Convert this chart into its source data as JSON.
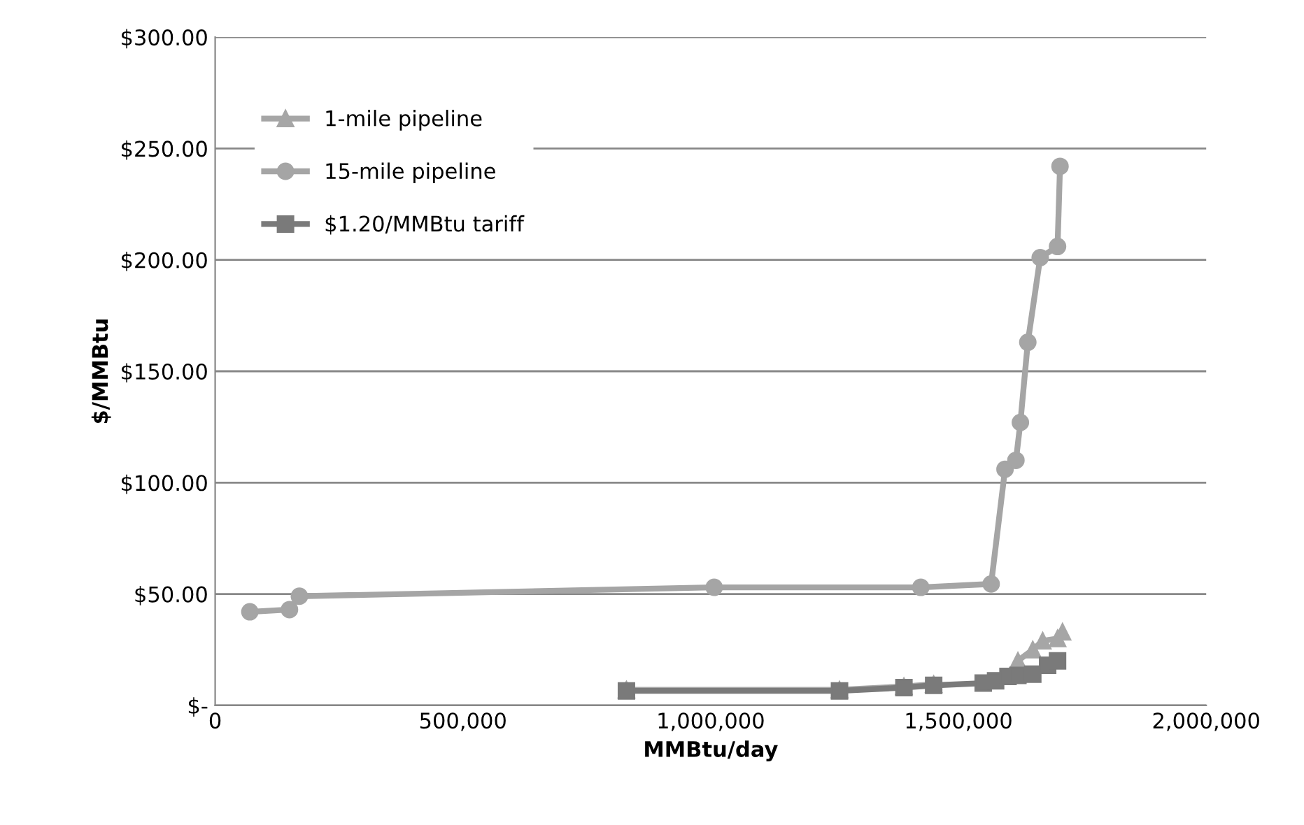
{
  "chart_data": {
    "type": "line",
    "xlabel": "MMBtu/day",
    "ylabel": "$/MMBtu",
    "xlim": [
      0,
      2000000
    ],
    "xticks": [
      {
        "value": 0,
        "label": "0"
      },
      {
        "value": 500000,
        "label": "500,000"
      },
      {
        "value": 1000000,
        "label": "1,000,000"
      },
      {
        "value": 1500000,
        "label": "1,500,000"
      },
      {
        "value": 2000000,
        "label": "2,000,000"
      }
    ],
    "ylim": [
      0,
      300
    ],
    "yticks": [
      {
        "value": 0,
        "label": "$-"
      },
      {
        "value": 50,
        "label": "$50.00"
      },
      {
        "value": 100,
        "label": "$100.00"
      },
      {
        "value": 150,
        "label": "$150.00"
      },
      {
        "value": 200,
        "label": "$200.00"
      },
      {
        "value": 250,
        "label": "$250.00"
      },
      {
        "value": 300,
        "label": "$300.00"
      }
    ],
    "grid": "y",
    "legend": "top left",
    "line_style": "solid",
    "series": [
      {
        "name": "1-mile pipeline",
        "color": "#a6a6a6",
        "marker": "triangle",
        "x": [
          830000,
          1260000,
          1390000,
          1450000,
          1550000,
          1580000,
          1600000,
          1620000,
          1650000,
          1670000,
          1700000,
          1710000
        ],
        "values": [
          7,
          7,
          8.5,
          9.5,
          null,
          null,
          null,
          20,
          25,
          29,
          30,
          33
        ]
      },
      {
        "name": "15-mile pipeline",
        "color": "#a5a5a5",
        "marker": "circle",
        "x": [
          70000,
          150000,
          170000,
          1007000,
          1424000,
          1566000,
          1594000,
          1616000,
          1625000,
          1640000,
          1665000,
          1700000,
          1705000
        ],
        "values": [
          42,
          43,
          49,
          53,
          53,
          54.5,
          106,
          110,
          127,
          163,
          201,
          206,
          242
        ]
      },
      {
        "name": "$1.20/MMBtu tariff",
        "color": "#7a7a7a",
        "marker": "square",
        "x": [
          830000,
          1260000,
          1390000,
          1450000,
          1550000,
          1575000,
          1600000,
          1620000,
          1650000,
          1680000,
          1700000
        ],
        "values": [
          6.5,
          6.5,
          8,
          9,
          10,
          11,
          13,
          13.5,
          14,
          18,
          20
        ]
      }
    ]
  }
}
